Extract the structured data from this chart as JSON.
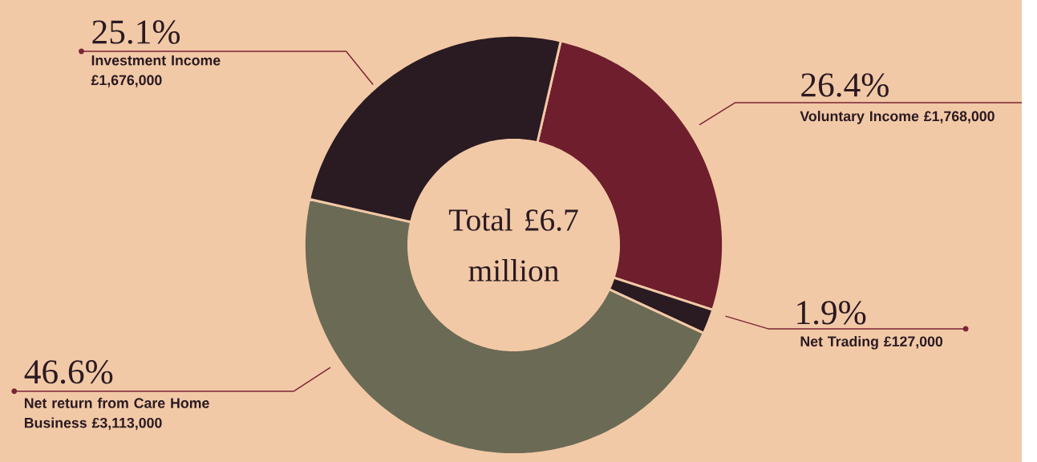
{
  "chart_data": {
    "type": "donut",
    "categories": [
      "Voluntary Income £1,768,000",
      "Net Trading £127,000",
      "Net return from Care Home Business £3,113,000",
      "Investment Income £1,676,000"
    ],
    "values": [
      26.4,
      1.9,
      46.6,
      25.1
    ],
    "colors": [
      "#6e1e2c",
      "#2a1a22",
      "#6b6a55",
      "#2a1a22"
    ],
    "value_labels": [
      "26.4%",
      "1.9%",
      "46.6%",
      "25.1%"
    ],
    "annotations": [
      "Total £6.7 million"
    ]
  }
}
